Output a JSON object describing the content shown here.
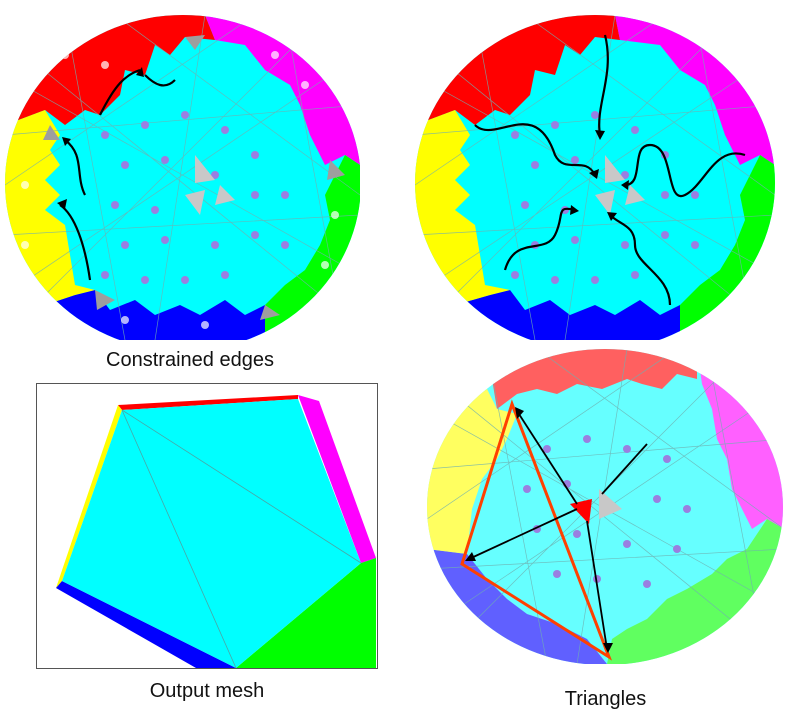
{
  "captions": {
    "top_left": "Constrained edges",
    "bottom_left": "Output mesh",
    "bottom_right": "Triangles"
  },
  "colors": {
    "center_region": "#00ffff",
    "red_region": "#ff0000",
    "magenta_region": "#ff00ff",
    "green_region": "#00ff00",
    "blue_region": "#0000ff",
    "yellow_region": "#ffff00",
    "arrow": "#000000",
    "triangle_outline": "#ff4000"
  }
}
